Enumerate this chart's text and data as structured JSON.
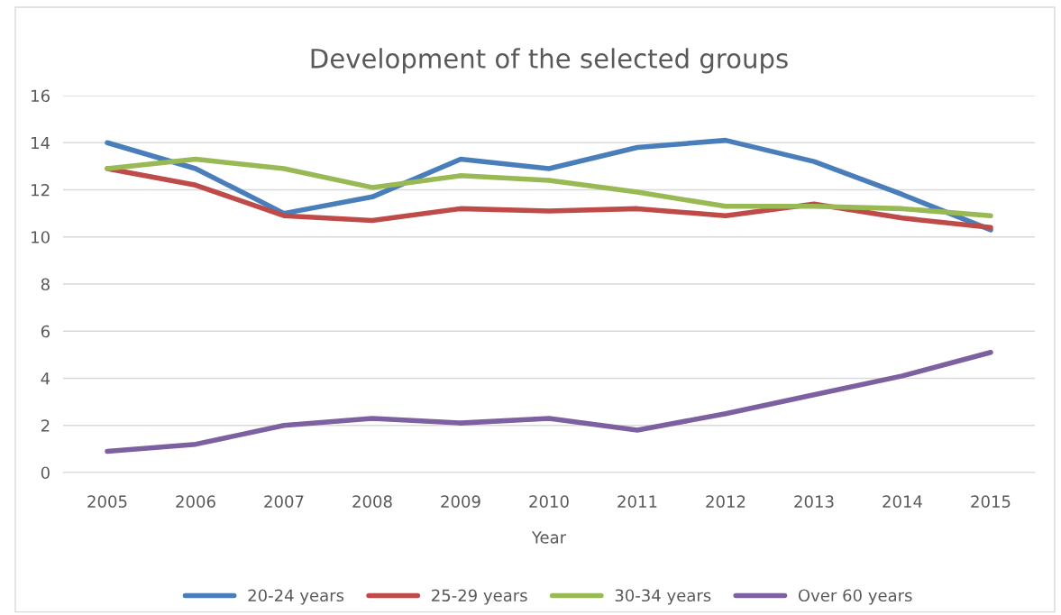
{
  "chart_data": {
    "type": "line",
    "title": "Development of the selected groups",
    "xlabel": "Year",
    "categories": [
      "2005",
      "2006",
      "2007",
      "2008",
      "2009",
      "2010",
      "2011",
      "2012",
      "2013",
      "2014",
      "2015"
    ],
    "series": [
      {
        "name": "20-24 years",
        "color": "#4a7ebb",
        "values": [
          14,
          12.9,
          11,
          11.7,
          13.3,
          12.9,
          13.8,
          14.1,
          13.2,
          11.8,
          10.3
        ]
      },
      {
        "name": "25-29 years",
        "color": "#be4b48",
        "values": [
          12.9,
          12.2,
          10.9,
          10.7,
          11.2,
          11.1,
          11.2,
          10.9,
          11.4,
          10.8,
          10.4
        ]
      },
      {
        "name": "30-34 years",
        "color": "#98b954",
        "values": [
          12.9,
          13.3,
          12.9,
          12.1,
          12.6,
          12.4,
          11.9,
          11.3,
          11.3,
          11.2,
          10.9
        ]
      },
      {
        "name": "Over 60 years",
        "color": "#7d60a0",
        "values": [
          0.9,
          1.2,
          2.0,
          2.3,
          2.1,
          2.3,
          1.8,
          2.5,
          3.3,
          4.1,
          5.1
        ]
      }
    ],
    "ylim": [
      0,
      16
    ],
    "yticks": [
      0,
      2,
      4,
      6,
      8,
      10,
      12,
      14,
      16
    ],
    "grid": "y",
    "legend": "bottom",
    "marker": "none",
    "line_style": "solid"
  }
}
